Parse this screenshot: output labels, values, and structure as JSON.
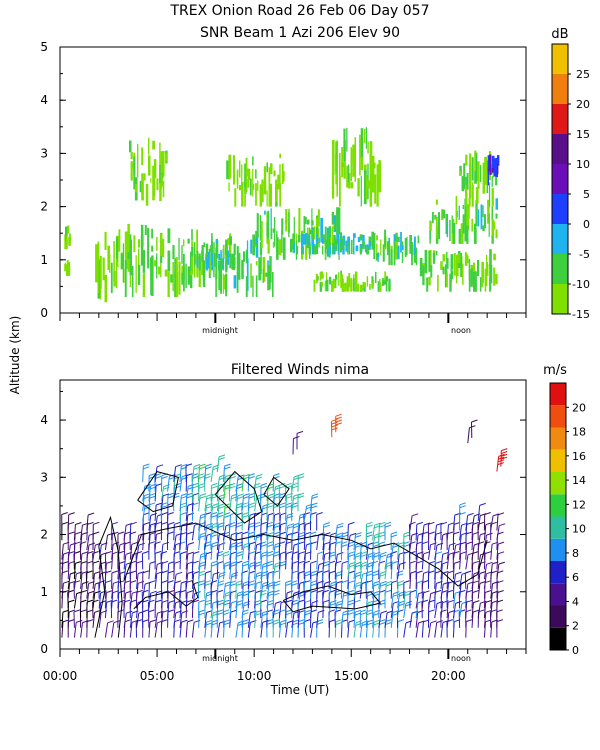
{
  "title_line1": "TREX Onion Road  26 Feb 06 Day 057",
  "title_line2": "SNR Beam 1 Azi 206 Elev 90",
  "shared_ylabel": "Altitude (km)",
  "colors": {
    "snr_scale": [
      "#7fe000",
      "#3ecf3e",
      "#1fb4ef",
      "#1f3fff",
      "#6a0fb8",
      "#5a0f8a",
      "#e01818",
      "#f07f10",
      "#f0c000"
    ],
    "wind_scale": [
      "#000000",
      "#3c0a5a",
      "#4a108f",
      "#2020c8",
      "#1f8ff0",
      "#2fbfa0",
      "#2ecf3e",
      "#8fe000",
      "#f0c000",
      "#f08a10",
      "#f04d10",
      "#e01010"
    ]
  },
  "panels": {
    "snr": {
      "unit": "dB",
      "midnight_label": "midnight",
      "noon_label": "noon"
    },
    "winds": {
      "title": "Filtered Winds nima",
      "unit": "m/s",
      "midnight_label": "midnight",
      "noon_label": "noon",
      "xlabel": "Time (UT)"
    }
  },
  "chart_data": [
    {
      "type": "heatmap",
      "title": "SNR Beam 1 Azi 206 Elev 90",
      "ylabel": "Altitude (km)",
      "xlim": [
        0,
        24
      ],
      "ylim": [
        0,
        5
      ],
      "yticks": [
        "0",
        "1",
        "2",
        "3",
        "4",
        "5"
      ],
      "colorbar_label": "dB",
      "colorbar_ticks": [
        "-15",
        "-10",
        "-5",
        "0",
        "5",
        "10",
        "15",
        "20",
        "25"
      ],
      "colorbar_range": [
        -15,
        30
      ],
      "regions": [
        {
          "x": [
            0.2,
            0.5
          ],
          "y": [
            1.2,
            1.7
          ],
          "snr": -12
        },
        {
          "x": [
            0.2,
            0.4
          ],
          "y": [
            0.7,
            1.0
          ],
          "snr": -13
        },
        {
          "x": [
            1.8,
            2.5
          ],
          "y": [
            0.2,
            1.8
          ],
          "snr": -12
        },
        {
          "x": [
            2.5,
            5.5
          ],
          "y": [
            0.3,
            1.7
          ],
          "snr": -11
        },
        {
          "x": [
            3.5,
            5.5
          ],
          "y": [
            2.0,
            3.3
          ],
          "snr": -13
        },
        {
          "x": [
            5.5,
            8.0
          ],
          "y": [
            0.3,
            1.6
          ],
          "snr": -9
        },
        {
          "x": [
            7.0,
            9.0
          ],
          "y": [
            0.8,
            1.4
          ],
          "snr": -5
        },
        {
          "x": [
            8.0,
            11.0
          ],
          "y": [
            0.3,
            1.5
          ],
          "snr": -8
        },
        {
          "x": [
            8.5,
            11.5
          ],
          "y": [
            2.0,
            3.0
          ],
          "snr": -13
        },
        {
          "x": [
            10.0,
            14.5
          ],
          "y": [
            1.0,
            2.0
          ],
          "snr": -8
        },
        {
          "x": [
            12.0,
            16.0
          ],
          "y": [
            1.1,
            1.5
          ],
          "snr": -5
        },
        {
          "x": [
            13.0,
            17.0
          ],
          "y": [
            0.4,
            0.8
          ],
          "snr": -12
        },
        {
          "x": [
            14.0,
            16.5
          ],
          "y": [
            2.0,
            3.5
          ],
          "snr": -13
        },
        {
          "x": [
            16.0,
            18.5
          ],
          "y": [
            0.9,
            1.6
          ],
          "snr": -7
        },
        {
          "x": [
            18.5,
            22.5
          ],
          "y": [
            0.4,
            1.2
          ],
          "snr": -9
        },
        {
          "x": [
            19.0,
            22.5
          ],
          "y": [
            1.3,
            2.2
          ],
          "snr": -8
        },
        {
          "x": [
            20.5,
            22.5
          ],
          "y": [
            2.0,
            3.1
          ],
          "snr": -10
        },
        {
          "x": [
            22.0,
            22.6
          ],
          "y": [
            2.4,
            3.0
          ],
          "snr": 5
        }
      ]
    },
    {
      "type": "scatter",
      "title": "Filtered Winds nima",
      "xlabel": "Time (UT)",
      "ylabel": "Altitude (km)",
      "xlim": [
        0,
        24
      ],
      "ylim": [
        0,
        4.7
      ],
      "xticks": [
        "00:00",
        "05:00",
        "10:00",
        "15:00",
        "20:00"
      ],
      "xtick_values": [
        0,
        5,
        10,
        15,
        20
      ],
      "yticks": [
        "0",
        "1",
        "2",
        "3",
        "4"
      ],
      "colorbar_label": "m/s",
      "colorbar_ticks": [
        "0",
        "2",
        "4",
        "6",
        "8",
        "10",
        "12",
        "14",
        "16",
        "18",
        "20"
      ],
      "colorbar_range": [
        0,
        22
      ],
      "speed_zones": [
        {
          "x": [
            0,
            2
          ],
          "speed": 3
        },
        {
          "x": [
            2,
            4
          ],
          "speed": 5
        },
        {
          "x": [
            4,
            7
          ],
          "speed": 6
        },
        {
          "x": [
            7,
            11
          ],
          "speed": 8
        },
        {
          "x": [
            11,
            14
          ],
          "speed": 7
        },
        {
          "x": [
            14,
            18
          ],
          "speed": 8
        },
        {
          "x": [
            18,
            21
          ],
          "speed": 6
        },
        {
          "x": [
            21,
            23
          ],
          "speed": 4
        }
      ],
      "isolated_barbs": [
        {
          "x": 14.0,
          "y": 3.7,
          "speed": 20
        },
        {
          "x": 21.0,
          "y": 3.6,
          "speed": 3
        },
        {
          "x": 22.5,
          "y": 3.1,
          "speed": 21
        },
        {
          "x": 12.0,
          "y": 3.4,
          "speed": 4
        }
      ]
    }
  ]
}
